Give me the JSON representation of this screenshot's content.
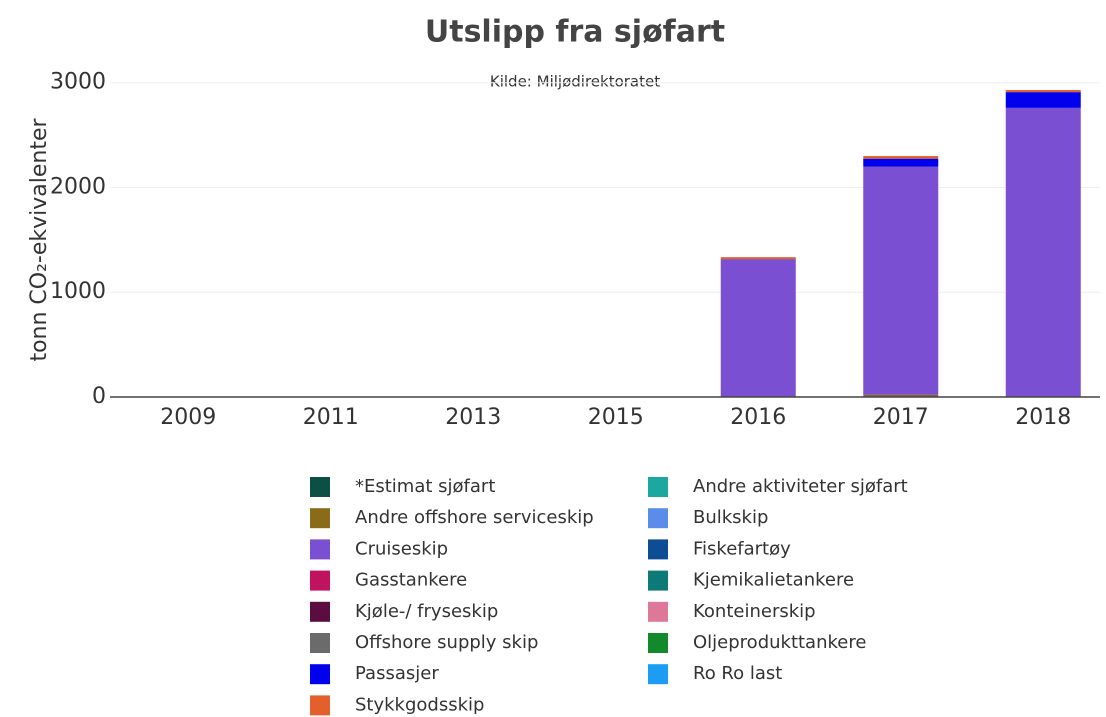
{
  "chart_data": {
    "type": "stacked-bar",
    "title": "Utslipp fra sjøfart",
    "subtitle": "Kilde: Miljødirektoratet",
    "y_label": "tonn CO₂-ekvivalenter",
    "categories": [
      "2009",
      "2011",
      "2013",
      "2015",
      "2016",
      "2017",
      "2018"
    ],
    "ylim": [
      0,
      3150
    ],
    "yticks": [
      0,
      1000,
      2000,
      3000
    ],
    "grid": true,
    "series": [
      {
        "name": "*Estimat sjøfart",
        "color": "#0b4f45",
        "values": [
          0,
          0,
          0,
          0,
          0,
          0,
          0
        ]
      },
      {
        "name": "Andre aktiviteter sjøfart",
        "color": "#1ca8a0",
        "values": [
          0,
          0,
          0,
          0,
          0,
          0,
          0
        ]
      },
      {
        "name": "Andre offshore serviceskip",
        "color": "#8a6b18",
        "values": [
          0,
          0,
          0,
          0,
          0,
          20,
          0
        ]
      },
      {
        "name": "Bulkskip",
        "color": "#5b8cea",
        "values": [
          0,
          0,
          0,
          0,
          0,
          0,
          0
        ]
      },
      {
        "name": "Cruiseskip",
        "color": "#7a4fd1",
        "values": [
          0,
          0,
          0,
          0,
          1310,
          2180,
          2760
        ]
      },
      {
        "name": "Fiskefartøy",
        "color": "#0e4c93",
        "values": [
          0,
          0,
          0,
          0,
          0,
          0,
          0
        ]
      },
      {
        "name": "Gasstankere",
        "color": "#c0135f",
        "values": [
          0,
          0,
          0,
          0,
          0,
          0,
          0
        ]
      },
      {
        "name": "Kjemikalietankere",
        "color": "#0d7a78",
        "values": [
          0,
          0,
          0,
          0,
          0,
          0,
          0
        ]
      },
      {
        "name": "Kjøle-/ fryseskip",
        "color": "#5a0d3e",
        "values": [
          0,
          0,
          0,
          0,
          0,
          0,
          0
        ]
      },
      {
        "name": "Konteinerskip",
        "color": "#de7898",
        "values": [
          0,
          0,
          0,
          0,
          0,
          0,
          0
        ]
      },
      {
        "name": "Offshore supply skip",
        "color": "#6b6b6b",
        "values": [
          0,
          0,
          0,
          0,
          0,
          0,
          0
        ]
      },
      {
        "name": "Oljeprodukttankere",
        "color": "#128a2c",
        "values": [
          0,
          0,
          0,
          0,
          0,
          0,
          0
        ]
      },
      {
        "name": "Passasjer",
        "color": "#0000ee",
        "values": [
          0,
          0,
          0,
          0,
          5,
          75,
          150
        ]
      },
      {
        "name": "Ro Ro last",
        "color": "#1c9cf2",
        "values": [
          0,
          0,
          0,
          0,
          0,
          0,
          0
        ]
      },
      {
        "name": "Stykkgodsskip",
        "color": "#e35f2c",
        "values": [
          0,
          0,
          0,
          5,
          20,
          25,
          20
        ]
      }
    ]
  }
}
